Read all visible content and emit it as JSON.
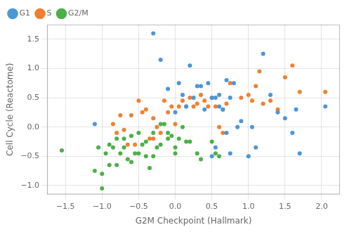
{
  "chart_data": {
    "type": "scatter",
    "xlabel": "G2M Checkpoint (Hallmark)",
    "ylabel": "Cell Cycle (Reactome)",
    "xlim": [
      -1.75,
      2.25
    ],
    "ylim": [
      -1.15,
      1.75
    ],
    "xticks": [
      {
        "value": -1.5,
        "label": "−1.5"
      },
      {
        "value": -1.0,
        "label": "−1.0"
      },
      {
        "value": -0.5,
        "label": "−0.5"
      },
      {
        "value": 0.0,
        "label": "0.0"
      },
      0.5,
      {
        "value": 1.0,
        "label": "1.0"
      },
      1.5,
      {
        "value": 2.0,
        "label": "2.0"
      }
    ],
    "yticks": [
      {
        "value": -1.0,
        "label": "−1.0"
      },
      {
        "value": -0.5,
        "label": "−0.5"
      },
      {
        "value": 0.0,
        "label": "0.0"
      },
      0.5,
      {
        "value": 1.0,
        "label": "1.0"
      },
      1.5
    ],
    "grid": true,
    "legend": "upper left",
    "series": [
      {
        "name": "G1",
        "color": "#4c96d7",
        "x": [
          -1.1,
          -0.3,
          -0.2,
          -0.1,
          0.0,
          0.05,
          0.1,
          0.15,
          0.2,
          0.25,
          0.3,
          0.35,
          0.4,
          0.45,
          0.5,
          0.55,
          0.6,
          0.65,
          0.7,
          0.75,
          0.8,
          0.85,
          0.9,
          1.0,
          1.05,
          1.1,
          1.2,
          1.3,
          1.4,
          1.5,
          1.6,
          1.65,
          1.7,
          2.05,
          0.5,
          0.55,
          0.6,
          0.65,
          0.7,
          0.75
        ],
        "values": [
          0.05,
          1.6,
          1.15,
          0.65,
          0.25,
          0.75,
          0.55,
          0.35,
          1.05,
          0.5,
          0.7,
          0.7,
          0.3,
          0.75,
          0.5,
          0.5,
          0.35,
          0.3,
          0.8,
          0.5,
          0.75,
          0.0,
          0.1,
          -0.5,
          0.0,
          -0.35,
          1.25,
          0.55,
          0.25,
          0.15,
          -0.1,
          0.3,
          -0.45,
          0.35,
          -0.5,
          -0.35,
          0.55,
          0.3,
          -0.1,
          -0.45
        ]
      },
      {
        "name": "S",
        "color": "#f08030",
        "x": [
          -0.85,
          -0.8,
          -0.75,
          -0.65,
          -0.6,
          -0.55,
          -0.45,
          -0.4,
          -0.35,
          -0.3,
          -0.25,
          -0.2,
          -0.15,
          -0.1,
          -0.05,
          0.0,
          0.05,
          0.1,
          0.15,
          0.2,
          0.25,
          0.3,
          0.35,
          0.4,
          0.45,
          0.5,
          0.55,
          0.6,
          0.65,
          0.7,
          0.75,
          0.9,
          1.0,
          1.05,
          1.1,
          1.15,
          1.2,
          1.3,
          1.4,
          1.5,
          1.6,
          1.7,
          2.05,
          -0.7,
          -0.5,
          -0.3
        ],
        "values": [
          0.05,
          -0.1,
          0.2,
          -0.3,
          0.2,
          -0.3,
          0.25,
          0.3,
          -0.2,
          0.15,
          0.0,
          -0.1,
          0.45,
          0.25,
          0.35,
          0.05,
          0.35,
          0.45,
          0.35,
          0.5,
          0.35,
          0.4,
          0.55,
          0.45,
          0.35,
          0.5,
          0.35,
          0.0,
          -0.1,
          0.4,
          0.75,
          0.5,
          0.55,
          0.45,
          0.7,
          0.95,
          0.4,
          0.45,
          0.3,
          0.85,
          1.05,
          0.6,
          0.6,
          -0.05,
          0.45,
          -0.2
        ]
      },
      {
        "name": "G2/M",
        "color": "#4daf4a",
        "x": [
          -1.55,
          -1.1,
          -1.05,
          -1.0,
          -0.95,
          -0.9,
          -0.85,
          -0.8,
          -0.75,
          -0.7,
          -0.65,
          -0.6,
          -0.55,
          -0.5,
          -0.45,
          -0.4,
          -0.35,
          -0.3,
          -0.25,
          -0.2,
          -0.15,
          -0.1,
          -0.05,
          0.0,
          0.05,
          0.1,
          0.15,
          0.2,
          0.3,
          0.35,
          0.5,
          0.55,
          0.6,
          -0.9,
          -0.8,
          -0.7,
          -0.6,
          -1.0,
          -0.5,
          -0.4,
          -0.3,
          -0.2,
          -0.1,
          0.0
        ],
        "values": [
          -0.4,
          -0.75,
          -0.35,
          -1.05,
          -0.45,
          -0.65,
          -0.35,
          -0.65,
          -0.45,
          -0.2,
          -0.55,
          -0.6,
          -0.45,
          -0.45,
          -0.3,
          -0.5,
          -0.7,
          -0.5,
          -0.35,
          0.05,
          0.05,
          -0.1,
          -0.15,
          -0.45,
          -0.2,
          0.0,
          -0.25,
          -0.25,
          -0.45,
          -0.55,
          -0.25,
          -0.45,
          -0.5,
          -0.3,
          -0.2,
          -0.35,
          -0.15,
          -0.8,
          -0.1,
          -0.25,
          -0.1,
          -0.3,
          -0.2,
          -0.35
        ]
      }
    ]
  }
}
